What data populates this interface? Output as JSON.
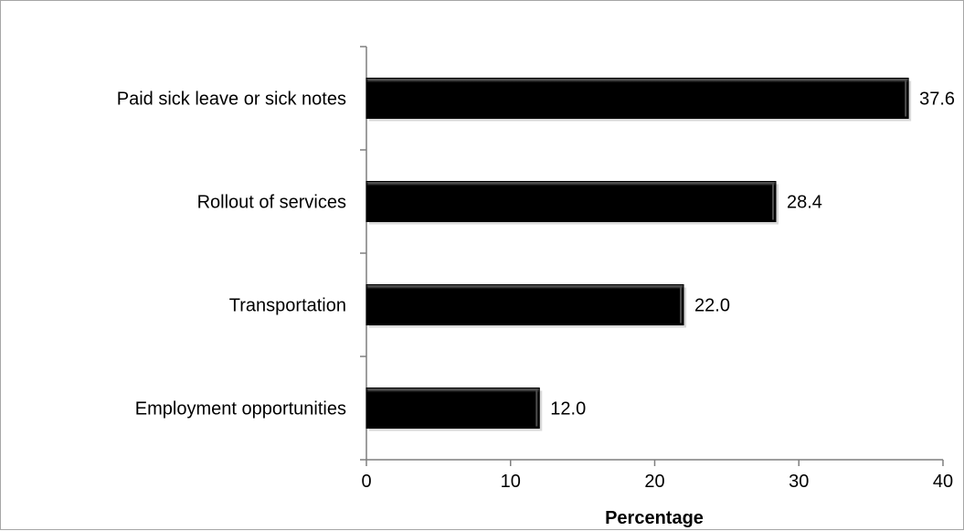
{
  "chart_data": {
    "type": "bar",
    "orientation": "horizontal",
    "categories": [
      "Paid sick leave or sick notes",
      "Rollout of services",
      "Transportation",
      "Employment opportunities"
    ],
    "values": [
      37.6,
      28.4,
      22.0,
      12.0
    ],
    "value_labels": [
      "37.6",
      "28.4",
      "22.0",
      "12.0"
    ],
    "xlabel": "Percentage",
    "ylabel": "",
    "title": "",
    "xlim": [
      0,
      40
    ],
    "x_ticks": [
      0,
      10,
      20,
      30,
      40
    ],
    "x_tick_labels": [
      "0",
      "10",
      "20",
      "30",
      "40"
    ],
    "grid": false,
    "legend": "none",
    "bar_color": "#000000",
    "bar_highlight_color": "#4d4d4d",
    "axis_color": "#7f7f7f"
  }
}
